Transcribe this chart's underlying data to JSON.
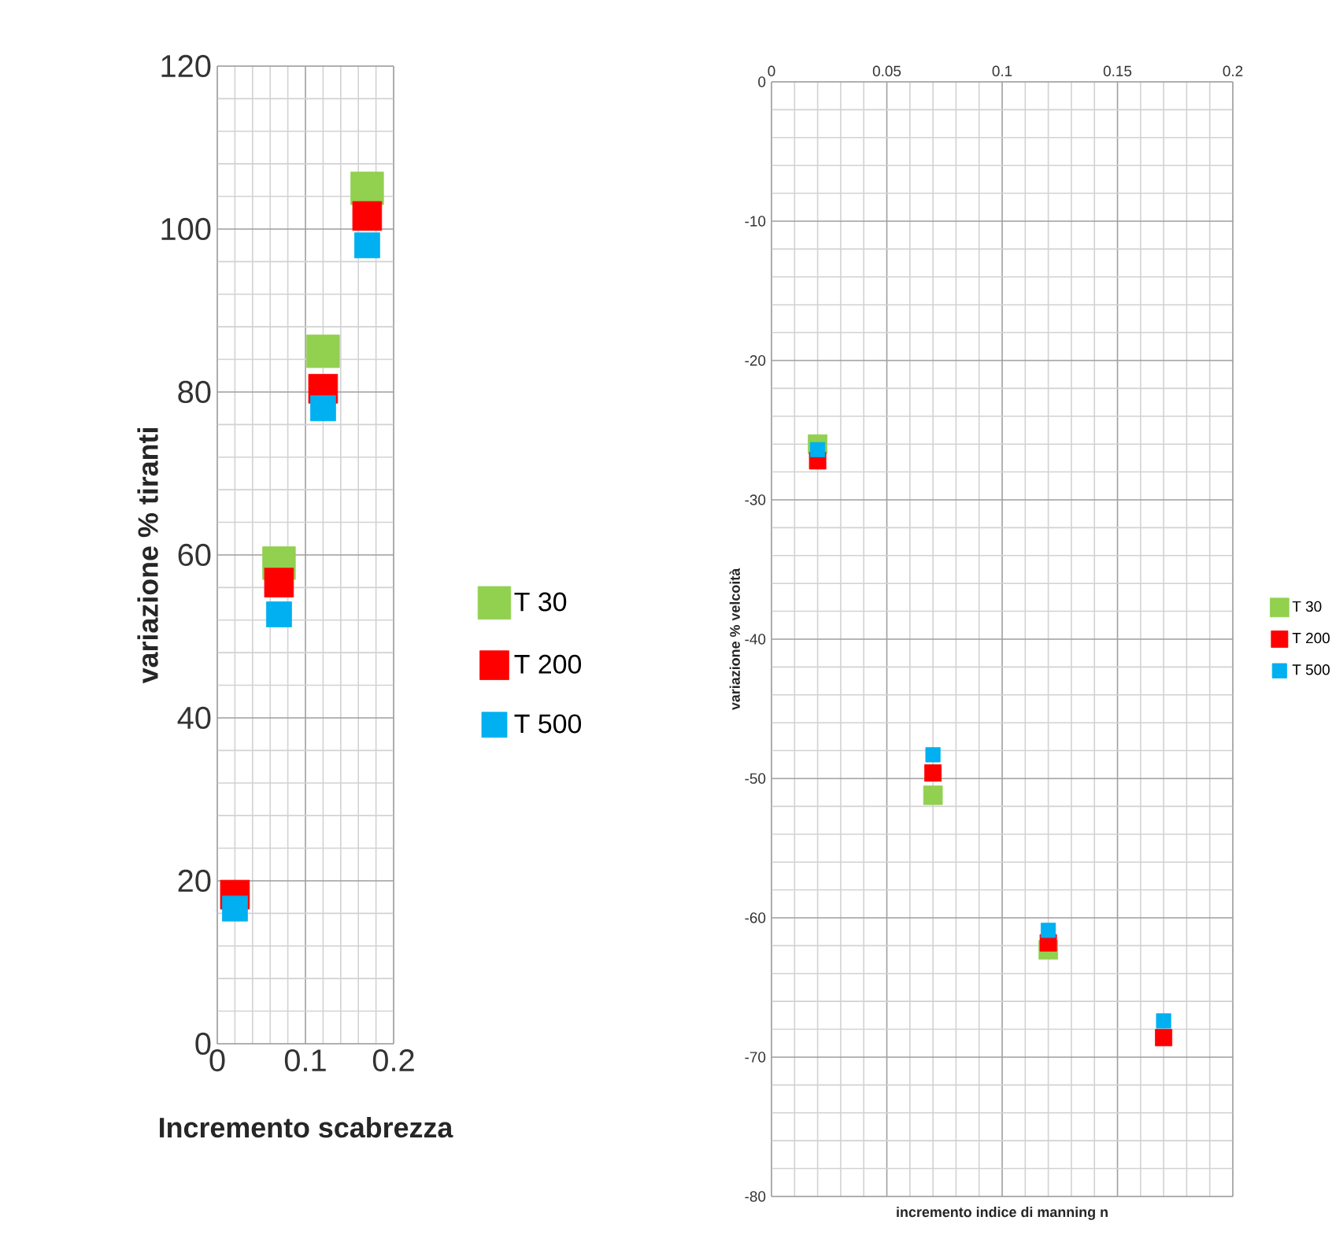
{
  "chart_data": [
    {
      "type": "scatter",
      "xlabel": "Incremento scabrezza",
      "ylabel": "variazione % tiranti",
      "x": [
        0.02,
        0.07,
        0.12,
        0.17
      ],
      "xlim": [
        0,
        0.2
      ],
      "ylim": [
        0,
        120
      ],
      "xticks": [
        0,
        0.1,
        0.2
      ],
      "yticks": [
        0,
        20,
        40,
        60,
        80,
        100,
        120
      ],
      "grid": true,
      "legend": "right",
      "marker": "square",
      "series": [
        {
          "name": "T 30",
          "color": "#92d050",
          "values": [
            null,
            59,
            85,
            105
          ]
        },
        {
          "name": "T 200",
          "color": "#ff0000",
          "values": [
            18.3,
            56.6,
            80.4,
            101.6
          ]
        },
        {
          "name": "T 500",
          "color": "#00b0f0",
          "values": [
            16.6,
            52.7,
            78,
            98
          ]
        }
      ]
    },
    {
      "type": "scatter",
      "xlabel": "incremento indice di manning n",
      "ylabel": "variazione % velcoità",
      "x": [
        0.02,
        0.07,
        0.12,
        0.17
      ],
      "xlim": [
        0,
        0.2
      ],
      "ylim": [
        -80,
        0
      ],
      "xticks": [
        0,
        0.05,
        0.1,
        0.15,
        0.2
      ],
      "yticks": [
        -80,
        -70,
        -60,
        -50,
        -40,
        -30,
        -20,
        -10,
        0
      ],
      "grid": true,
      "legend": "right",
      "marker": "square",
      "series": [
        {
          "name": "T 30",
          "color": "#92d050",
          "values": [
            -26,
            -51.2,
            -62.3,
            null
          ]
        },
        {
          "name": "T 200",
          "color": "#ff0000",
          "values": [
            -27.2,
            -49.6,
            -61.8,
            -68.6
          ]
        },
        {
          "name": "T 500",
          "color": "#00b0f0",
          "values": [
            -26.4,
            -48.3,
            -60.9,
            -67.4
          ]
        }
      ]
    }
  ]
}
